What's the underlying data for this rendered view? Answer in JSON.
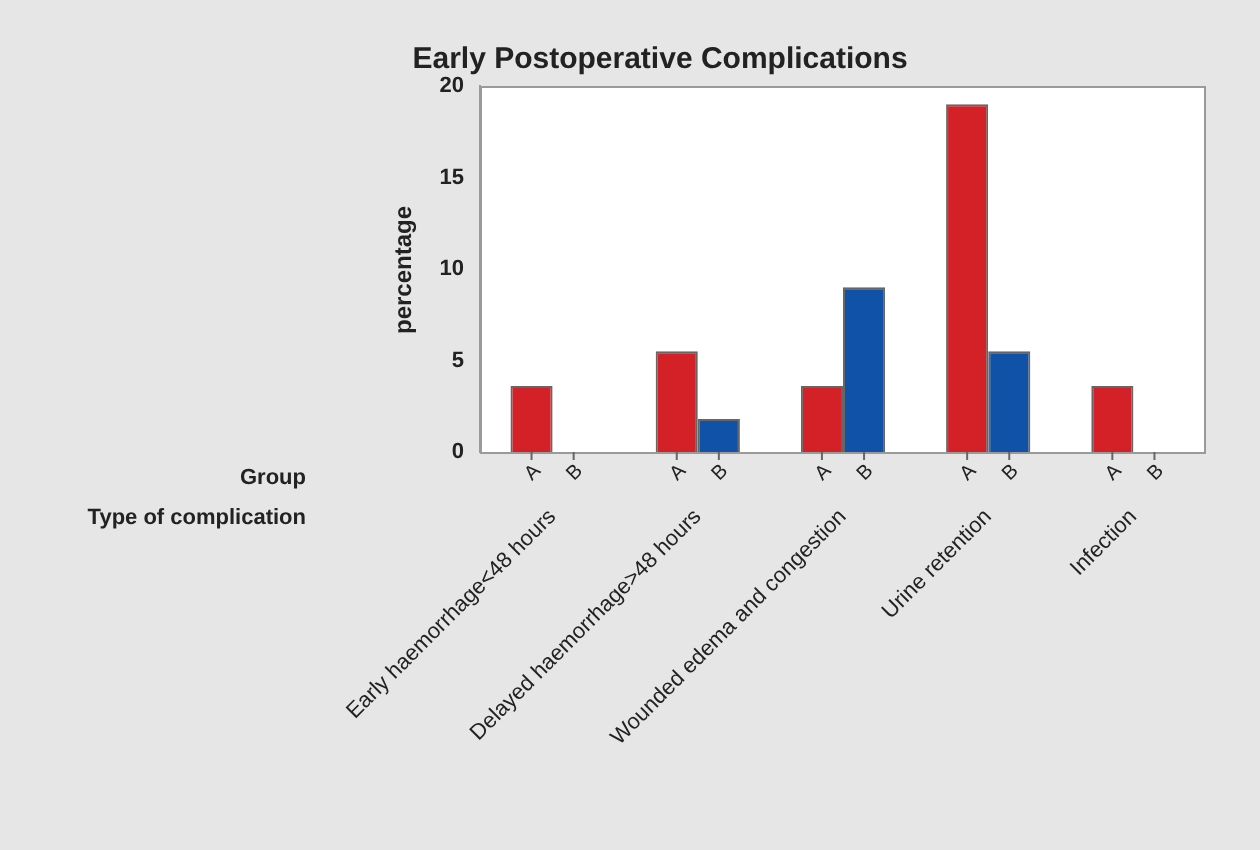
{
  "chart_data": {
    "type": "bar",
    "title": "Early Postoperative Complications",
    "ylabel": "percentage",
    "xlabel": "Type of complication",
    "annotations": [
      "Group"
    ],
    "categories": [
      "Early haemorrhage<48 hours",
      "Delayed haemorrhage>48 hours",
      "Wounded edema and congestion",
      "Urine retention",
      "Infection"
    ],
    "series": [
      {
        "name": "A",
        "color": "#d42027",
        "values": [
          3.6,
          5.5,
          3.6,
          19,
          3.6
        ]
      },
      {
        "name": "B",
        "color": "#0f52a8",
        "values": [
          0,
          1.8,
          9,
          5.5,
          0
        ]
      }
    ],
    "ylim": [
      0,
      20
    ],
    "yticks": [
      0,
      5,
      10,
      15,
      20
    ],
    "grid": false,
    "legend": false
  }
}
